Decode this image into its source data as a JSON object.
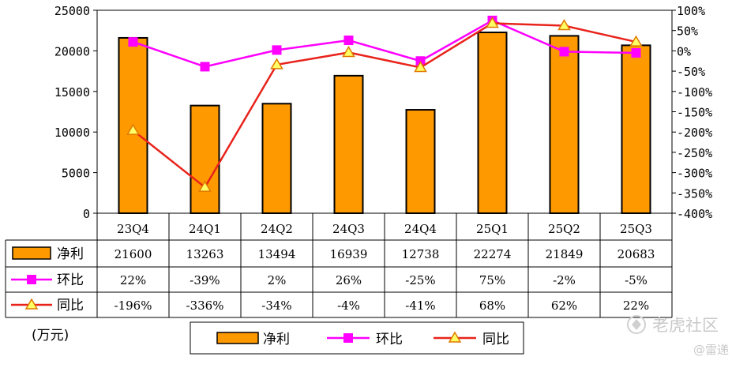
{
  "chart_data": {
    "type": "bar",
    "categories": [
      "23Q4",
      "24Q1",
      "24Q2",
      "24Q3",
      "24Q4",
      "25Q1",
      "25Q2",
      "25Q3"
    ],
    "unit_label": "(万元)",
    "y_left": {
      "min": 0,
      "max": 25000,
      "ticks": [
        "25000",
        "20000",
        "15000",
        "10000",
        "5000",
        "0"
      ]
    },
    "y_right": {
      "min": -400,
      "max": 100,
      "ticks": [
        "100%",
        "50%",
        "0%",
        "-50%",
        "-100%",
        "-150%",
        "-200%",
        "-250%",
        "-300%",
        "-350%",
        "-400%"
      ]
    },
    "series": [
      {
        "name": "净利",
        "kind": "bar",
        "color": "#ff9900",
        "values": [
          21600,
          13263,
          13494,
          16939,
          12738,
          22274,
          21849,
          20683
        ],
        "labels": [
          "21600",
          "13263",
          "13494",
          "16939",
          "12738",
          "22274",
          "21849",
          "20683"
        ]
      },
      {
        "name": "环比",
        "kind": "line",
        "marker": "square",
        "color": "#ff00ff",
        "values": [
          22,
          -39,
          2,
          26,
          -25,
          75,
          -2,
          -5
        ],
        "labels": [
          "22%",
          "-39%",
          "2%",
          "26%",
          "-25%",
          "75%",
          "-2%",
          "-5%"
        ]
      },
      {
        "name": "同比",
        "kind": "line",
        "marker": "triangle",
        "color": "#e8231b",
        "marker_fill": "#ffff66",
        "values": [
          -196,
          -336,
          -34,
          -4,
          -41,
          68,
          62,
          22
        ],
        "labels": [
          "-196%",
          "-336%",
          "-34%",
          "-4%",
          "-41%",
          "68%",
          "62%",
          "22%"
        ]
      }
    ],
    "legend": [
      "净利",
      "环比",
      "同比"
    ],
    "grid": false
  },
  "watermark": {
    "text": "老虎社区",
    "author": "@雷递"
  }
}
